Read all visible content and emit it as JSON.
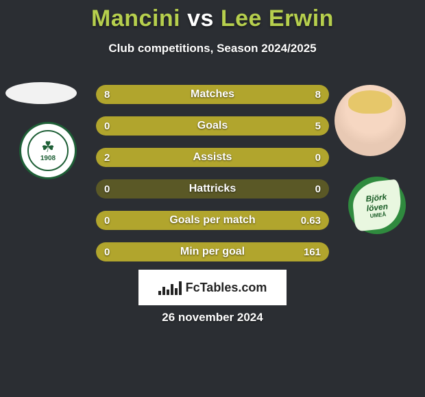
{
  "title": {
    "left": "Mancini",
    "vs": " vs ",
    "right": "Lee Erwin"
  },
  "title_colors": {
    "left": "#b6cf4d",
    "vs": "#ffffff",
    "right": "#b6cf4d"
  },
  "subtitle": "Club competitions, Season 2024/2025",
  "brand": "FcTables.com",
  "date": "26 november 2024",
  "bar_colors": {
    "fill": "#b1a52d",
    "track": "#5a5826"
  },
  "background_color": "#2b2e33",
  "rows": [
    {
      "label": "Matches",
      "left": "8",
      "right": "8",
      "left_pct": 50,
      "right_pct": 50,
      "mode": "split"
    },
    {
      "label": "Goals",
      "left": "0",
      "right": "5",
      "left_pct": 0,
      "right_pct": 100,
      "mode": "right"
    },
    {
      "label": "Assists",
      "left": "2",
      "right": "0",
      "left_pct": 100,
      "right_pct": 0,
      "mode": "left"
    },
    {
      "label": "Hattricks",
      "left": "0",
      "right": "0",
      "left_pct": 0,
      "right_pct": 0,
      "mode": "none"
    },
    {
      "label": "Goals per match",
      "left": "0",
      "right": "0.63",
      "left_pct": 0,
      "right_pct": 100,
      "mode": "right"
    },
    {
      "label": "Min per goal",
      "left": "0",
      "right": "161",
      "left_pct": 0,
      "right_pct": 100,
      "mode": "right"
    }
  ],
  "left_club": {
    "symbol": "☘",
    "year": "1908"
  },
  "right_club": {
    "line1": "Björk",
    "line2": "löven",
    "line3": "UMEÅ"
  },
  "brand_bars_heights": [
    6,
    12,
    8,
    16,
    10,
    20
  ]
}
